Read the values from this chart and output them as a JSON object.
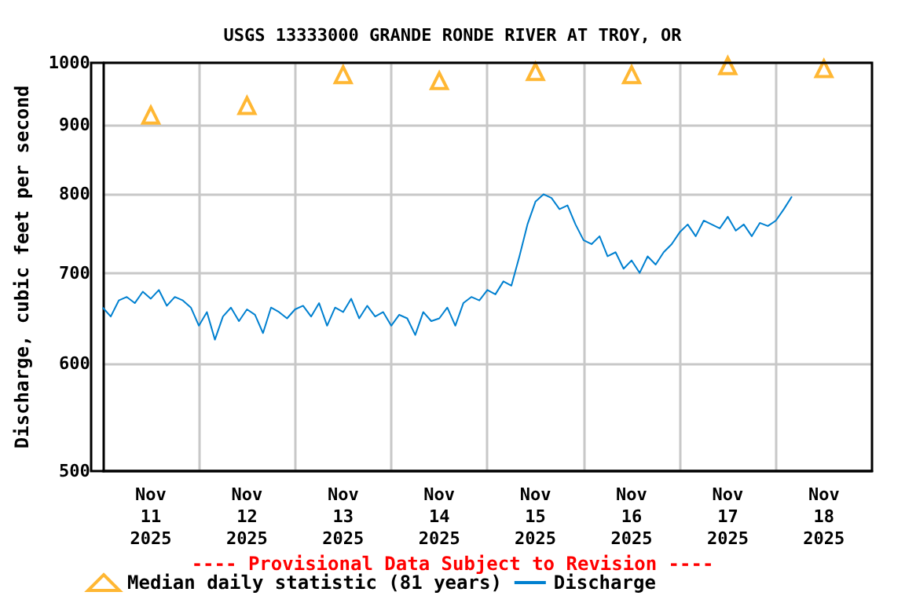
{
  "chart_data": {
    "type": "line",
    "title": "USGS 13333000 GRANDE RONDE RIVER AT TROY, OR",
    "ylabel": "Discharge, cubic feet per second",
    "annotations": [
      "---- Provisional Data Subject to Revision ----"
    ],
    "log": "y",
    "ylim": [
      500,
      1000
    ],
    "yticks": [
      500,
      600,
      700,
      800,
      900,
      1000
    ],
    "xlim": [
      "2025-11-11T00:00",
      "2025-11-19T00:00"
    ],
    "xticks": [
      {
        "value": "2025-11-11T12:00",
        "label": "Nov\n11\n2025"
      },
      {
        "value": "2025-11-12T12:00",
        "label": "Nov\n12\n2025"
      },
      {
        "value": "2025-11-13T12:00",
        "label": "Nov\n13\n2025"
      },
      {
        "value": "2025-11-14T12:00",
        "label": "Nov\n14\n2025"
      },
      {
        "value": "2025-11-15T12:00",
        "label": "Nov\n15\n2025"
      },
      {
        "value": "2025-11-16T12:00",
        "label": "Nov\n16\n2025"
      },
      {
        "value": "2025-11-17T12:00",
        "label": "Nov\n17\n2025"
      },
      {
        "value": "2025-11-18T12:00",
        "label": "Nov\n18\n2025"
      },
      {
        "value": "2025-11-12T00:00",
        "label": null
      },
      {
        "value": "2025-11-13T00:00",
        "label": null
      },
      {
        "value": "2025-11-14T00:00",
        "label": null
      },
      {
        "value": "2025-11-15T00:00",
        "label": null
      },
      {
        "value": "2025-11-16T00:00",
        "label": null
      },
      {
        "value": "2025-11-17T00:00",
        "label": null
      },
      {
        "value": "2025-11-18T00:00",
        "label": null
      }
    ],
    "grid": true,
    "legend": "bottom",
    "series": [
      {
        "name": "Median daily statistic (81 years)",
        "type": "scatter",
        "marker": "triangle",
        "color": "#ffa500",
        "x": [
          "2025-11-11T12:00",
          "2025-11-12T12:00",
          "2025-11-13T12:00",
          "2025-11-14T12:00",
          "2025-11-15T12:00",
          "2025-11-16T12:00",
          "2025-11-17T12:00",
          "2025-11-18T12:00"
        ],
        "values": [
          915,
          930,
          980,
          970,
          985,
          980,
          995,
          990
        ]
      },
      {
        "name": "Discharge",
        "marker": "none",
        "color": "#0080d0",
        "x": [
          "2025-11-11T00:00",
          "2025-11-11T02:00",
          "2025-11-11T04:00",
          "2025-11-11T06:00",
          "2025-11-11T08:00",
          "2025-11-11T10:00",
          "2025-11-11T12:00",
          "2025-11-11T14:00",
          "2025-11-11T16:00",
          "2025-11-11T18:00",
          "2025-11-11T20:00",
          "2025-11-11T22:00",
          "2025-11-12T00:00",
          "2025-11-12T02:00",
          "2025-11-12T04:00",
          "2025-11-12T06:00",
          "2025-11-12T08:00",
          "2025-11-12T10:00",
          "2025-11-12T12:00",
          "2025-11-12T14:00",
          "2025-11-12T16:00",
          "2025-11-12T18:00",
          "2025-11-12T20:00",
          "2025-11-12T22:00",
          "2025-11-13T00:00",
          "2025-11-13T02:00",
          "2025-11-13T04:00",
          "2025-11-13T06:00",
          "2025-11-13T08:00",
          "2025-11-13T10:00",
          "2025-11-13T12:00",
          "2025-11-13T14:00",
          "2025-11-13T16:00",
          "2025-11-13T18:00",
          "2025-11-13T20:00",
          "2025-11-13T22:00",
          "2025-11-14T00:00",
          "2025-11-14T02:00",
          "2025-11-14T04:00",
          "2025-11-14T06:00",
          "2025-11-14T08:00",
          "2025-11-14T10:00",
          "2025-11-14T12:00",
          "2025-11-14T14:00",
          "2025-11-14T16:00",
          "2025-11-14T18:00",
          "2025-11-14T20:00",
          "2025-11-14T22:00",
          "2025-11-15T00:00",
          "2025-11-15T02:00",
          "2025-11-15T04:00",
          "2025-11-15T06:00",
          "2025-11-15T08:00",
          "2025-11-15T10:00",
          "2025-11-15T12:00",
          "2025-11-15T14:00",
          "2025-11-15T16:00",
          "2025-11-15T18:00",
          "2025-11-15T20:00",
          "2025-11-15T22:00",
          "2025-11-16T00:00",
          "2025-11-16T02:00",
          "2025-11-16T04:00",
          "2025-11-16T06:00",
          "2025-11-16T08:00",
          "2025-11-16T10:00",
          "2025-11-16T12:00",
          "2025-11-16T14:00",
          "2025-11-16T16:00",
          "2025-11-16T18:00",
          "2025-11-16T20:00",
          "2025-11-16T22:00",
          "2025-11-17T00:00",
          "2025-11-17T02:00",
          "2025-11-17T04:00",
          "2025-11-17T06:00",
          "2025-11-17T08:00",
          "2025-11-17T10:00",
          "2025-11-17T12:00",
          "2025-11-17T14:00",
          "2025-11-17T16:00",
          "2025-11-17T18:00",
          "2025-11-17T20:00",
          "2025-11-17T22:00",
          "2025-11-18T00:00",
          "2025-11-18T02:00",
          "2025-11-18T04:00"
        ],
        "values": [
          660,
          650,
          668,
          672,
          665,
          678,
          670,
          680,
          662,
          672,
          668,
          660,
          640,
          655,
          625,
          650,
          660,
          645,
          658,
          652,
          632,
          660,
          655,
          648,
          658,
          662,
          650,
          665,
          640,
          660,
          655,
          670,
          648,
          662,
          650,
          655,
          640,
          652,
          648,
          630,
          655,
          645,
          648,
          660,
          640,
          665,
          672,
          668,
          680,
          675,
          690,
          685,
          720,
          760,
          790,
          800,
          795,
          780,
          785,
          760,
          740,
          735,
          745,
          720,
          725,
          705,
          715,
          700,
          720,
          710,
          725,
          735,
          750,
          760,
          745,
          765,
          760,
          755,
          770,
          752,
          760,
          745,
          762,
          758,
          765,
          780,
          797
        ]
      }
    ]
  }
}
